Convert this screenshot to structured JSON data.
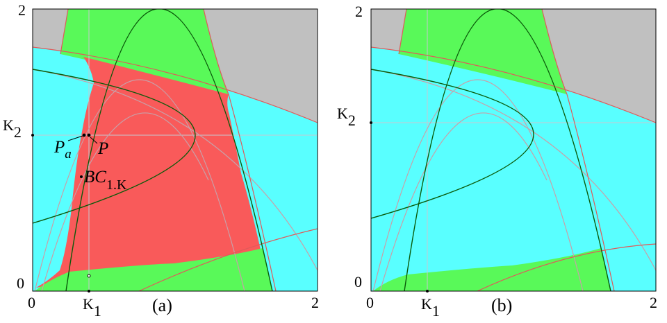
{
  "colors": {
    "gray": "#c0c0c0",
    "green": "#59f959",
    "cyan": "#59ffff",
    "red": "#f95a5a",
    "curve_dark_green": "#0a5a0a",
    "curve_light": "#c8a0a8",
    "curve_red": "#e05a5a",
    "grid": "#c8c8d0"
  },
  "panels": [
    {
      "id": "a",
      "caption": "(a)",
      "x_ticks": [
        "0",
        "K",
        "2"
      ],
      "x_tick_sub": "1",
      "y_ticks": [
        "0",
        "K",
        "2"
      ],
      "y_tick_sub": "2",
      "points": [
        {
          "base": "P",
          "sub": "a"
        },
        {
          "base": "P",
          "sub": ""
        },
        {
          "base": "BC",
          "sub": "1.K"
        }
      ]
    },
    {
      "id": "b",
      "caption": "(b)",
      "x_ticks": [
        "0",
        "K",
        "2"
      ],
      "x_tick_sub": "1",
      "y_ticks": [
        "0",
        "K",
        "2"
      ],
      "y_tick_sub": "2"
    }
  ]
}
